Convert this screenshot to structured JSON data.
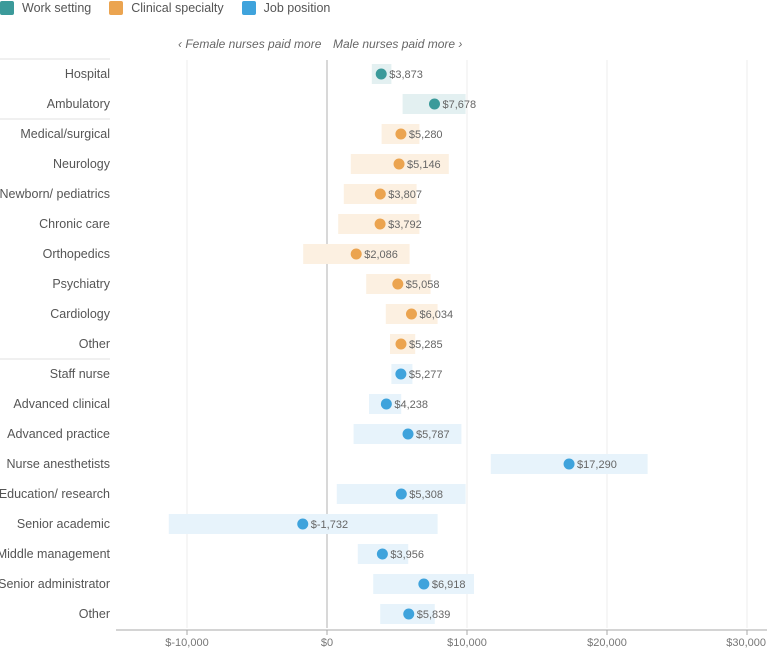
{
  "chart_data": {
    "type": "dot-range",
    "legend": [
      {
        "name": "Work setting",
        "color": "#3b9a9a"
      },
      {
        "name": "Clinical specialty",
        "color": "#eba450"
      },
      {
        "name": "Job position",
        "color": "#3fa3dc"
      }
    ],
    "direction_labels": {
      "left": "‹ Female nurses paid more",
      "right": "Male nurses paid more ›"
    },
    "range_colors": {
      "work": "#e3f0f1",
      "clinical": "#fcf0e1",
      "job": "#e7f3fb"
    },
    "x_axis": {
      "min": -15000,
      "max": 30000,
      "ticks": [
        -10000,
        0,
        10000,
        20000,
        30000
      ],
      "tick_labels": [
        "$-10,000",
        "$0",
        "$10,000",
        "$20,000",
        "$30,000"
      ]
    },
    "rows": [
      {
        "label": "Hospital",
        "group": "work",
        "value": 3873,
        "value_label": "$3,873",
        "low": 3200,
        "high": 4600
      },
      {
        "label": "Ambulatory",
        "group": "work",
        "value": 7678,
        "value_label": "$7,678",
        "low": 5400,
        "high": 9900
      },
      {
        "label": "Medical/surgical",
        "group": "clinical",
        "value": 5280,
        "value_label": "$5,280",
        "low": 3900,
        "high": 6600
      },
      {
        "label": "Neurology",
        "group": "clinical",
        "value": 5146,
        "value_label": "$5,146",
        "low": 1700,
        "high": 8700
      },
      {
        "label": "Newborn/ pediatrics",
        "group": "clinical",
        "value": 3807,
        "value_label": "$3,807",
        "low": 1200,
        "high": 6400
      },
      {
        "label": "Chronic care",
        "group": "clinical",
        "value": 3792,
        "value_label": "$3,792",
        "low": 800,
        "high": 6600
      },
      {
        "label": "Orthopedics",
        "group": "clinical",
        "value": 2086,
        "value_label": "$2,086",
        "low": -1700,
        "high": 5900
      },
      {
        "label": "Psychiatry",
        "group": "clinical",
        "value": 5058,
        "value_label": "$5,058",
        "low": 2800,
        "high": 7400
      },
      {
        "label": "Cardiology",
        "group": "clinical",
        "value": 6034,
        "value_label": "$6,034",
        "low": 4200,
        "high": 7900
      },
      {
        "label": "Other",
        "group": "clinical",
        "value": 5285,
        "value_label": "$5,285",
        "low": 4500,
        "high": 6300
      },
      {
        "label": "Staff nurse",
        "group": "job",
        "value": 5277,
        "value_label": "$5,277",
        "low": 4600,
        "high": 6100
      },
      {
        "label": "Advanced clinical",
        "group": "job",
        "value": 4238,
        "value_label": "$4,238",
        "low": 3000,
        "high": 5300
      },
      {
        "label": "Advanced practice",
        "group": "job",
        "value": 5787,
        "value_label": "$5,787",
        "low": 1900,
        "high": 9600
      },
      {
        "label": "Nurse anesthetists",
        "group": "job",
        "value": 17290,
        "value_label": "$17,290",
        "low": 11700,
        "high": 22900
      },
      {
        "label": "Education/ research",
        "group": "job",
        "value": 5308,
        "value_label": "$5,308",
        "low": 700,
        "high": 9900
      },
      {
        "label": "Senior academic",
        "group": "job",
        "value": -1732,
        "value_label": "$-1,732",
        "low": -11300,
        "high": 7900
      },
      {
        "label": "Middle management",
        "group": "job",
        "value": 3956,
        "value_label": "$3,956",
        "low": 2200,
        "high": 5800
      },
      {
        "label": "Senior administrator",
        "group": "job",
        "value": 6918,
        "value_label": "$6,918",
        "low": 3300,
        "high": 10500
      },
      {
        "label": "Other",
        "group": "job",
        "value": 5839,
        "value_label": "$5,839",
        "low": 3800,
        "high": 7700
      }
    ]
  }
}
